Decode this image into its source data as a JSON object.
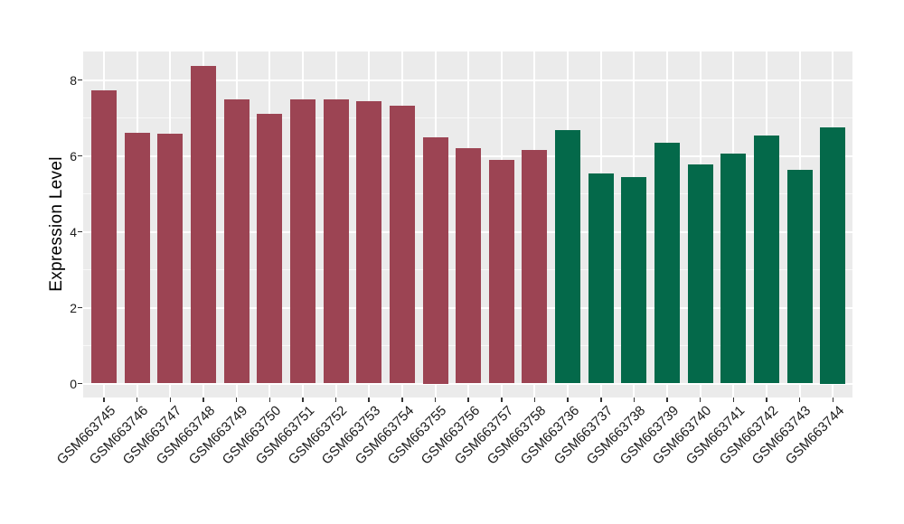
{
  "chart_data": {
    "type": "bar",
    "title": "",
    "xlabel": "",
    "ylabel": "Expression Level",
    "yticks": [
      0,
      2,
      4,
      6,
      8
    ],
    "minor_gridlines": [
      1,
      3,
      5,
      7
    ],
    "ylim": [
      0,
      8.8
    ],
    "legend_position": "none",
    "grid": "on",
    "panel_bg": "#EBEBEB",
    "grid_color": "#FFFFFF",
    "categories": [
      "GSM663745",
      "GSM663746",
      "GSM663747",
      "GSM663748",
      "GSM663749",
      "GSM663750",
      "GSM663751",
      "GSM663752",
      "GSM663753",
      "GSM663754",
      "GSM663755",
      "GSM663756",
      "GSM663757",
      "GSM663758",
      "GSM663736",
      "GSM663737",
      "GSM663738",
      "GSM663739",
      "GSM663740",
      "GSM663741",
      "GSM663742",
      "GSM663743",
      "GSM663744"
    ],
    "values": [
      7.72,
      6.61,
      6.58,
      8.36,
      7.49,
      7.11,
      7.49,
      7.49,
      7.43,
      7.32,
      6.5,
      6.2,
      5.9,
      6.16,
      6.68,
      5.53,
      5.45,
      6.34,
      5.78,
      6.06,
      6.54,
      5.63,
      6.75
    ],
    "bar_groups": [
      "group-a",
      "group-a",
      "group-a",
      "group-a",
      "group-a",
      "group-a",
      "group-a",
      "group-a",
      "group-a",
      "group-a",
      "group-a",
      "group-a",
      "group-a",
      "group-a",
      "group-b",
      "group-b",
      "group-b",
      "group-b",
      "group-b",
      "group-b",
      "group-b",
      "group-b",
      "group-b"
    ],
    "group_colors": {
      "group-a": "#9C4453",
      "group-b": "#04694A"
    }
  }
}
